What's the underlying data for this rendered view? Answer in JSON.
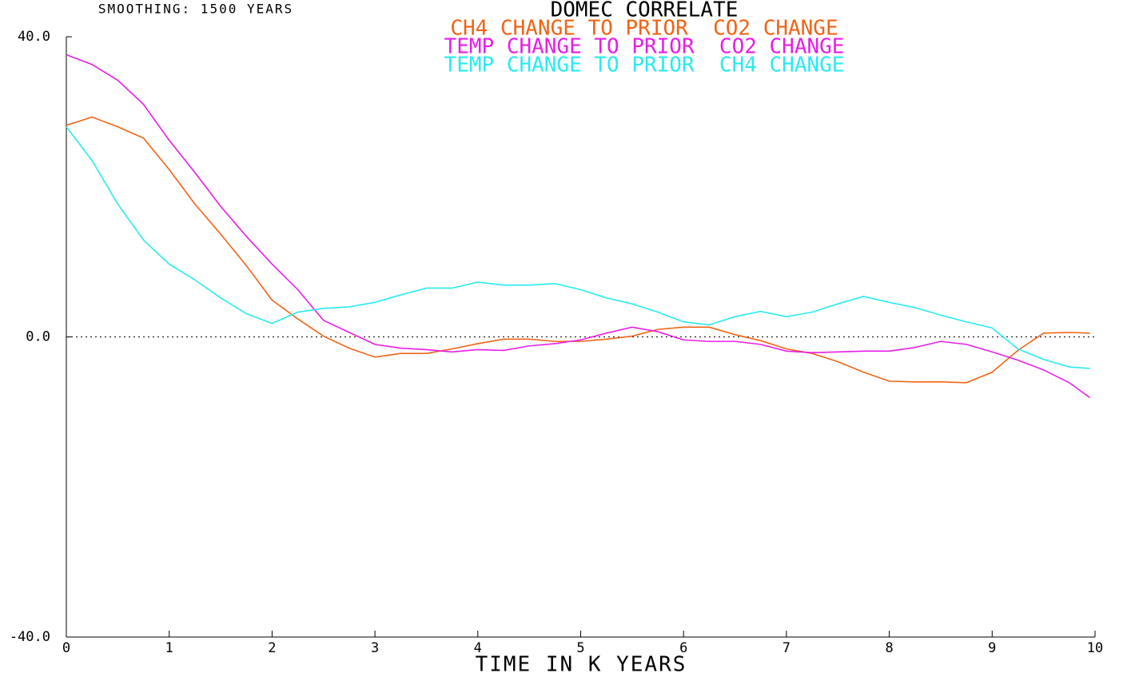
{
  "chart_data": {
    "type": "line",
    "title": "DOMEC CORRELATE",
    "annotation": "SMOOTHING: 1500 YEARS",
    "xlabel": "TIME IN K YEARS",
    "x": [
      0,
      0.25,
      0.5,
      0.75,
      1,
      1.25,
      1.5,
      1.75,
      2,
      2.25,
      2.5,
      2.75,
      3,
      3.25,
      3.5,
      3.75,
      4,
      4.25,
      4.5,
      4.75,
      5,
      5.25,
      5.5,
      5.75,
      6,
      6.25,
      6.5,
      6.75,
      7,
      7.25,
      7.5,
      7.75,
      8,
      8.25,
      8.5,
      8.75,
      9,
      9.25,
      9.5,
      9.75,
      9.95
    ],
    "series": [
      {
        "name": "CH4 CHANGE TO PRIOR  CO2 CHANGE",
        "color": "#f06414",
        "values": [
          28.2,
          29.3,
          28,
          26.5,
          22.3,
          17.7,
          13.7,
          9.5,
          4.9,
          2.4,
          0.1,
          -1.5,
          -2.7,
          -2.2,
          -2.2,
          -1.6,
          -0.9,
          -0.3,
          -0.3,
          -0.6,
          -0.6,
          -0.3,
          0.1,
          1.0,
          1.3,
          1.3,
          0.3,
          -0.5,
          -1.6,
          -2.2,
          -3.3,
          -4.7,
          -5.9,
          -6.0,
          -6.0,
          -6.1,
          -4.7,
          -1.8,
          0.5,
          0.6,
          0.5
        ]
      },
      {
        "name": "TEMP CHANGE TO PRIOR  CO2 CHANGE",
        "color": "#e61ee6",
        "values": [
          37.6,
          36.3,
          34.2,
          31,
          26.2,
          21.9,
          17.4,
          13.4,
          9.7,
          6.3,
          2.2,
          0.6,
          -1.0,
          -1.5,
          -1.7,
          -2.0,
          -1.7,
          -1.8,
          -1.2,
          -0.9,
          -0.4,
          0.5,
          1.3,
          0.7,
          -0.4,
          -0.6,
          -0.6,
          -1.0,
          -1.9,
          -2.1,
          -2.0,
          -1.9,
          -1.9,
          -1.4,
          -0.6,
          -1.0,
          -2.0,
          -3.1,
          -4.4,
          -6.1,
          -8.1
        ]
      },
      {
        "name": "TEMP CHANGE TO PRIOR  CH4 CHANGE",
        "color": "#28ebf0",
        "values": [
          28,
          23.5,
          17.7,
          12.9,
          9.7,
          7.6,
          5.2,
          3.1,
          1.8,
          3.3,
          3.8,
          4.0,
          4.6,
          5.6,
          6.5,
          6.5,
          7.3,
          6.9,
          6.9,
          7.1,
          6.3,
          5.2,
          4.4,
          3.3,
          2.0,
          1.6,
          2.7,
          3.4,
          2.7,
          3.3,
          4.4,
          5.4,
          4.6,
          3.9,
          2.9,
          2.0,
          1.2,
          -1.6,
          -3.0,
          -4.0,
          -4.2
        ]
      }
    ],
    "xlim": [
      0,
      10
    ],
    "xticks": [
      0,
      1,
      2,
      3,
      4,
      5,
      6,
      7,
      8,
      9,
      10
    ],
    "ylim": [
      -40,
      40
    ],
    "yticks": [
      {
        "value": -40,
        "label": "-40.0"
      },
      {
        "value": 0,
        "label": "0.0"
      },
      {
        "value": 40,
        "label": "40.0"
      }
    ],
    "reference_line": 0
  }
}
